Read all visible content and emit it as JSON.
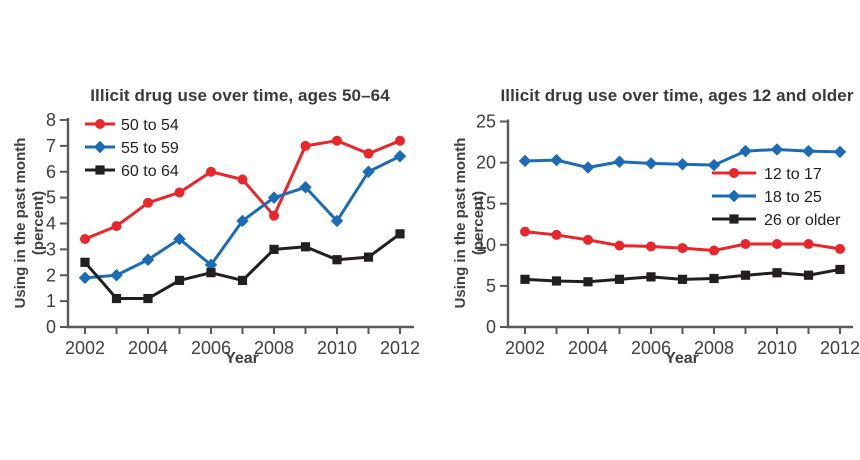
{
  "page": {
    "background": "#ffffff"
  },
  "style": {
    "axis_color": "#58595b",
    "tick_text_color": "#414042",
    "title_color": "#3a393b",
    "legend_text_color": "#231f20"
  },
  "chart_data": [
    {
      "type": "line",
      "title": "Illicit drug use over time, ages 50–64",
      "xlabel": "Year",
      "ylabel_lines": [
        "Using in the past month",
        "(percent)"
      ],
      "x": [
        2002,
        2003,
        2004,
        2005,
        2006,
        2007,
        2008,
        2009,
        2010,
        2011,
        2012
      ],
      "x_ticks_labeled": [
        2002,
        2004,
        2006,
        2008,
        2010,
        2012
      ],
      "xlim": [
        2002,
        2012
      ],
      "ylim": [
        0,
        8
      ],
      "y_ticks": [
        0,
        1,
        2,
        3,
        4,
        5,
        6,
        7,
        8
      ],
      "grid": false,
      "legend_position": "top-left",
      "series": [
        {
          "name": "50 to 54",
          "color": "#e8262b",
          "marker": "circle",
          "values": [
            3.4,
            3.9,
            4.8,
            5.2,
            6.0,
            5.7,
            4.3,
            7.0,
            7.2,
            6.7,
            7.2
          ]
        },
        {
          "name": "55 to 59",
          "color": "#1b6cb5",
          "marker": "diamond",
          "values": [
            1.9,
            2.0,
            2.6,
            3.4,
            2.4,
            4.1,
            5.0,
            5.4,
            4.1,
            6.0,
            6.6
          ]
        },
        {
          "name": "60 to 64",
          "color": "#231f20",
          "marker": "square",
          "values": [
            2.5,
            1.1,
            1.1,
            1.8,
            2.1,
            1.8,
            3.0,
            3.1,
            2.6,
            2.7,
            3.6
          ]
        }
      ]
    },
    {
      "type": "line",
      "title": "Illicit drug use over time, ages 12 and older",
      "xlabel": "Year",
      "ylabel_lines": [
        "Using in the past month",
        "(percent)"
      ],
      "x": [
        2002,
        2003,
        2004,
        2005,
        2006,
        2007,
        2008,
        2009,
        2010,
        2011,
        2012
      ],
      "x_ticks_labeled": [
        2002,
        2004,
        2006,
        2008,
        2010,
        2012
      ],
      "xlim": [
        2002,
        2012
      ],
      "ylim": [
        0,
        25
      ],
      "y_ticks": [
        0,
        5,
        10,
        15,
        20,
        25
      ],
      "grid": false,
      "legend_position": "middle-right",
      "series": [
        {
          "name": "12 to 17",
          "color": "#e8262b",
          "marker": "circle",
          "values": [
            11.6,
            11.2,
            10.6,
            9.9,
            9.8,
            9.6,
            9.3,
            10.1,
            10.1,
            10.1,
            9.5
          ]
        },
        {
          "name": "18 to 25",
          "color": "#1b6cb5",
          "marker": "diamond",
          "values": [
            20.2,
            20.3,
            19.4,
            20.1,
            19.9,
            19.8,
            19.7,
            21.4,
            21.6,
            21.4,
            21.3
          ]
        },
        {
          "name": "26 or older",
          "color": "#231f20",
          "marker": "square",
          "values": [
            5.8,
            5.6,
            5.5,
            5.8,
            6.1,
            5.8,
            5.9,
            6.3,
            6.6,
            6.3,
            7.0
          ]
        }
      ]
    }
  ]
}
